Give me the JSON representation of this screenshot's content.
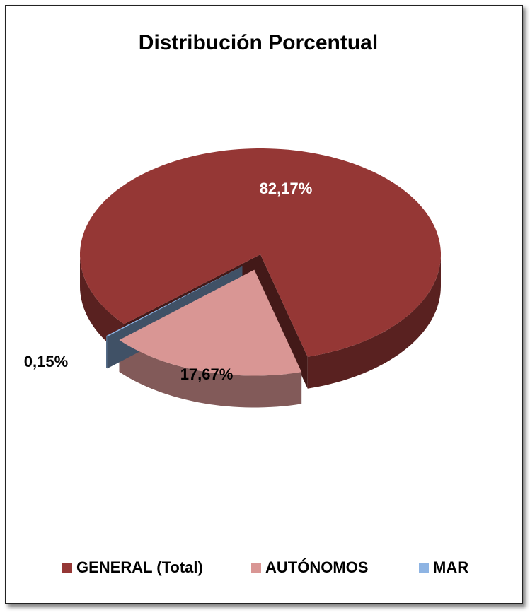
{
  "chart_data": {
    "type": "pie",
    "title": "Distribución Porcentual",
    "categories": [
      "GENERAL (Total)",
      "AUTÓNOMOS",
      "MAR"
    ],
    "values": [
      82.17,
      17.67,
      0.15
    ],
    "value_labels": [
      "82,17%",
      "17,67%",
      "0,15%"
    ],
    "colors": [
      "#953735",
      "#d99694",
      "#8eb4e3"
    ],
    "legend": "bottom"
  }
}
